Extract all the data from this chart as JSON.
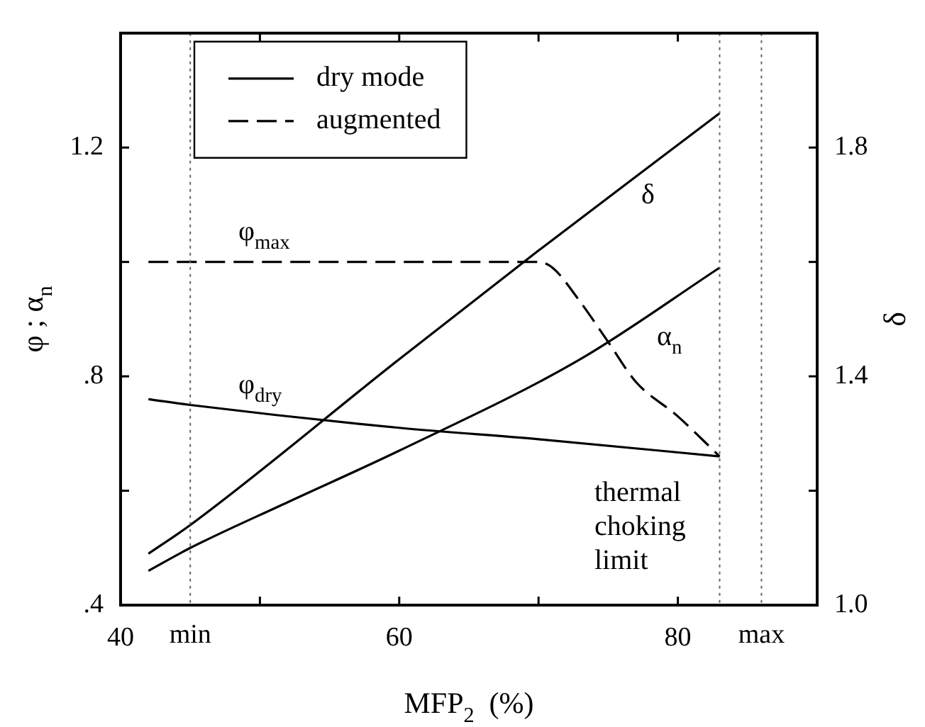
{
  "chart_data": {
    "type": "line",
    "xlabel": "MFP$_{2}$  (%)",
    "ylabel": "φ ; α$_{n}$",
    "y2label": "δ",
    "xlim": [
      40,
      90
    ],
    "xticks": [
      40,
      {
        "value": 50,
        "label": null
      },
      60,
      {
        "value": 70,
        "label": null
      },
      80,
      {
        "value": 90,
        "label": null
      }
    ],
    "ylim": [
      0.4,
      1.4
    ],
    "yticks": [
      {
        "value": 0.4,
        "label": ".4"
      },
      {
        "value": 0.6,
        "label": null
      },
      {
        "value": 0.8,
        "label": ".8"
      },
      {
        "value": 1.0,
        "label": null
      },
      1.2
    ],
    "y2lim": [
      1.0,
      2.0
    ],
    "y2ticks": [
      {
        "value": 1.0,
        "label": "1.0"
      },
      {
        "value": 1.2,
        "label": null
      },
      1.4,
      {
        "value": 1.6,
        "label": null
      },
      1.8
    ],
    "grid": false,
    "legend": "top left",
    "marker": "none",
    "series": [
      {
        "name": "dry mode",
        "color": "#000000",
        "line_style": "solid",
        "x": [
          42,
          45,
          60,
          70,
          83
        ],
        "values": [
          0.76,
          0.75,
          0.71,
          0.69,
          0.66
        ]
      },
      {
        "color": "#000000",
        "line_style": "solid",
        "axis": "y2",
        "x": [
          42,
          45,
          60,
          70,
          83
        ],
        "values": [
          1.09,
          1.14,
          1.43,
          1.62,
          1.86
        ]
      },
      {
        "color": "#000000",
        "line_style": "solid",
        "x": [
          42,
          45,
          52,
          60,
          73,
          83
        ],
        "values": [
          0.46,
          0.5,
          0.58,
          0.67,
          0.83,
          0.99
        ]
      },
      {
        "name": "augmented",
        "color": "#000000",
        "line_style": "dashed",
        "x": [
          42,
          70,
          71,
          73,
          75,
          77,
          80,
          83
        ],
        "values": [
          1.0,
          1.0,
          0.99,
          0.93,
          0.86,
          0.79,
          0.73,
          0.66
        ]
      }
    ],
    "ref_lines": [
      {
        "axis": "x",
        "value": 45,
        "label": "min",
        "color": "#666666",
        "line_style": "dotted"
      },
      {
        "axis": "x",
        "value": 83,
        "label": null,
        "color": "#666666",
        "line_style": "dotted"
      },
      {
        "axis": "x",
        "value": 86,
        "label": "max",
        "color": "#666666",
        "line_style": "dotted"
      }
    ],
    "annotations": [
      "δ",
      "α$_{n}$",
      "φ$_{max}$",
      "φ$_{dry}$",
      "thermal\nchoking\nlimit"
    ]
  }
}
